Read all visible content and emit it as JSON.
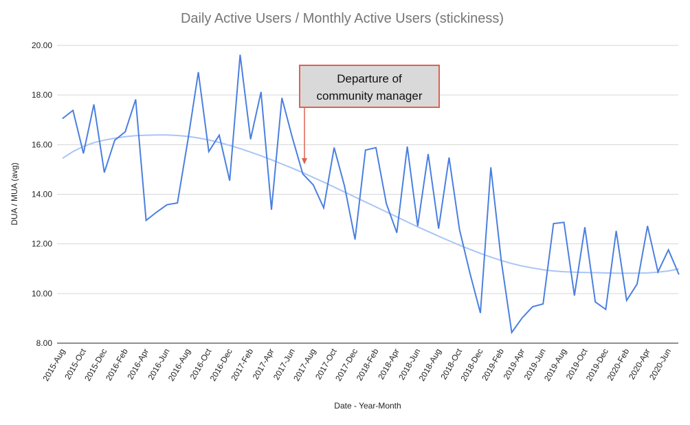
{
  "chart_data": {
    "type": "line",
    "title": "Daily Active Users / Monthly Active Users (stickiness)",
    "xlabel": "Date - Year-Month",
    "ylabel": "DUA / MUA (avg)",
    "ylim": [
      8,
      20
    ],
    "yticks": [
      "8.00",
      "10.00",
      "12.00",
      "14.00",
      "16.00",
      "18.00",
      "20.00"
    ],
    "grid": true,
    "legend": "none",
    "x_tick_labels": [
      "2015-Aug",
      "2015-Oct",
      "2015-Dec",
      "2016-Feb",
      "2016-Apr",
      "2016-Jun",
      "2016-Aug",
      "2016-Oct",
      "2016-Dec",
      "2017-Feb",
      "2017-Apr",
      "2017-Jun",
      "2017-Aug",
      "2017-Oct",
      "2017-Dec",
      "2018-Feb",
      "2018-Apr",
      "2018-Jun",
      "2018-Aug",
      "2018-Oct",
      "2018-Dec",
      "2019-Feb",
      "2019-Apr",
      "2019-Jun",
      "2019-Aug",
      "2019-Oct",
      "2019-Dec",
      "2020-Feb",
      "2020-Apr",
      "2020-Jun"
    ],
    "x": [
      "2015-Aug",
      "2015-Sep",
      "2015-Oct",
      "2015-Nov",
      "2015-Dec",
      "2016-Jan",
      "2016-Feb",
      "2016-Mar",
      "2016-Apr",
      "2016-May",
      "2016-Jun",
      "2016-Jul",
      "2016-Aug",
      "2016-Sep",
      "2016-Oct",
      "2016-Nov",
      "2016-Dec",
      "2017-Jan",
      "2017-Feb",
      "2017-Mar",
      "2017-Apr",
      "2017-May",
      "2017-Jun",
      "2017-Jul",
      "2017-Aug",
      "2017-Sep",
      "2017-Oct",
      "2017-Nov",
      "2017-Dec",
      "2018-Jan",
      "2018-Feb",
      "2018-Mar",
      "2018-Apr",
      "2018-May",
      "2018-Jun",
      "2018-Jul",
      "2018-Aug",
      "2018-Sep",
      "2018-Oct",
      "2018-Nov",
      "2018-Dec",
      "2019-Jan",
      "2019-Feb",
      "2019-Mar",
      "2019-Apr",
      "2019-May",
      "2019-Jun",
      "2019-Jul",
      "2019-Aug",
      "2019-Sep",
      "2019-Oct",
      "2019-Nov",
      "2019-Dec",
      "2020-Jan",
      "2020-Feb",
      "2020-Mar",
      "2020-Apr",
      "2020-May",
      "2020-Jun",
      "2020-Jul"
    ],
    "series": [
      {
        "kind": "data",
        "color": "#4a7fe0",
        "values": [
          17.05,
          17.38,
          15.65,
          17.62,
          14.88,
          16.18,
          16.52,
          17.82,
          12.95,
          13.28,
          13.58,
          13.65,
          16.18,
          18.92,
          15.72,
          16.38,
          14.55,
          19.62,
          16.22,
          18.12,
          13.38,
          17.88,
          16.28,
          14.82,
          14.38,
          13.45,
          15.88,
          14.32,
          12.18,
          15.78,
          15.88,
          13.62,
          12.45,
          15.92,
          12.72,
          15.62,
          12.62,
          15.48,
          12.58,
          10.82,
          9.22,
          15.08,
          11.32,
          8.43,
          9.02,
          9.47,
          9.58,
          12.82,
          12.87,
          9.92,
          12.67,
          9.66,
          9.36,
          12.52,
          9.72,
          10.38,
          12.72,
          10.87,
          11.76,
          10.77
        ]
      },
      {
        "kind": "trendline",
        "color": "#a9c4f5",
        "values": [
          15.45,
          15.72,
          15.93,
          16.08,
          16.18,
          16.26,
          16.32,
          16.36,
          16.38,
          16.39,
          16.39,
          16.37,
          16.33,
          16.27,
          16.19,
          16.09,
          15.97,
          15.84,
          15.7,
          15.55,
          15.39,
          15.22,
          15.05,
          14.87,
          14.68,
          14.49,
          14.29,
          14.09,
          13.89,
          13.69,
          13.49,
          13.29,
          13.09,
          12.89,
          12.69,
          12.5,
          12.31,
          12.13,
          11.95,
          11.78,
          11.62,
          11.47,
          11.33,
          11.21,
          11.11,
          11.03,
          10.96,
          10.91,
          10.88,
          10.86,
          10.85,
          10.84,
          10.83,
          10.82,
          10.82,
          10.82,
          10.83,
          10.86,
          10.91,
          10.99
        ]
      }
    ],
    "annotation": {
      "text_lines": [
        "Departure of",
        "community manager"
      ],
      "points_to_x": "2017-Jul",
      "box_fill": "#d9d9d9",
      "border_color": "#e06050"
    }
  }
}
